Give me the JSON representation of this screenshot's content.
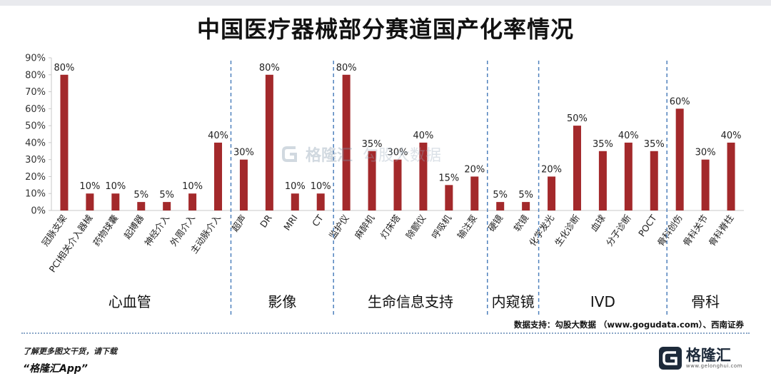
{
  "title": "中国医疗器械部分赛道国产化率情况",
  "source": "数据支持：勾股大数据 （www.gogudata.com）、西南证券",
  "footer": {
    "line1": "了解更多图文干货，请下载",
    "line2": "“格隆汇App”"
  },
  "logo": {
    "name": "格隆汇",
    "sub": "www.gelonghui.com"
  },
  "watermark": {
    "brand": "格隆汇",
    "partner": "勾股大数据"
  },
  "colors": {
    "bar": "#a3292b",
    "axis": "#c9c9c9",
    "divider": "#4f81bd",
    "text": "#222222"
  },
  "chart_data": {
    "type": "bar",
    "title": "中国医疗器械部分赛道国产化率情况",
    "ylim": [
      0,
      90
    ],
    "yticks": [
      "0%",
      "10%",
      "20%",
      "30%",
      "40%",
      "50%",
      "60%",
      "70%",
      "80%",
      "90%"
    ],
    "grid": false,
    "categories": [
      "冠脉支架",
      "PCI相关介入器械",
      "药物球囊",
      "起搏器",
      "神经介入",
      "外周介入",
      "主动脉介入",
      "超声",
      "DR",
      "MRI",
      "CT",
      "监护仪",
      "麻醉机",
      "灯床塔",
      "除颤仪",
      "呼吸机",
      "输注泵",
      "硬镜",
      "软镜",
      "化学发光",
      "生化诊断",
      "血球",
      "分子诊断",
      "POCT",
      "骨科创伤",
      "骨科关节",
      "骨科脊柱"
    ],
    "values": [
      80,
      10,
      10,
      5,
      5,
      10,
      40,
      30,
      80,
      10,
      10,
      80,
      35,
      30,
      40,
      15,
      20,
      5,
      5,
      20,
      50,
      35,
      40,
      35,
      60,
      30,
      40
    ],
    "labels": [
      "80%",
      "10%",
      "10%",
      "5%",
      "5%",
      "10%",
      "40%",
      "30%",
      "80%",
      "10%",
      "10%",
      "80%",
      "35%",
      "30%",
      "40%",
      "15%",
      "20%",
      "5%",
      "5%",
      "20%",
      "50%",
      "35%",
      "40%",
      "35%",
      "60%",
      "30%",
      "40%"
    ],
    "groups": [
      {
        "name": "心血管",
        "count": 7
      },
      {
        "name": "影像",
        "count": 4
      },
      {
        "name": "生命信息支持",
        "count": 6
      },
      {
        "name": "内窥镜",
        "count": 2
      },
      {
        "name": "IVD",
        "count": 5
      },
      {
        "name": "骨科",
        "count": 3
      }
    ]
  }
}
